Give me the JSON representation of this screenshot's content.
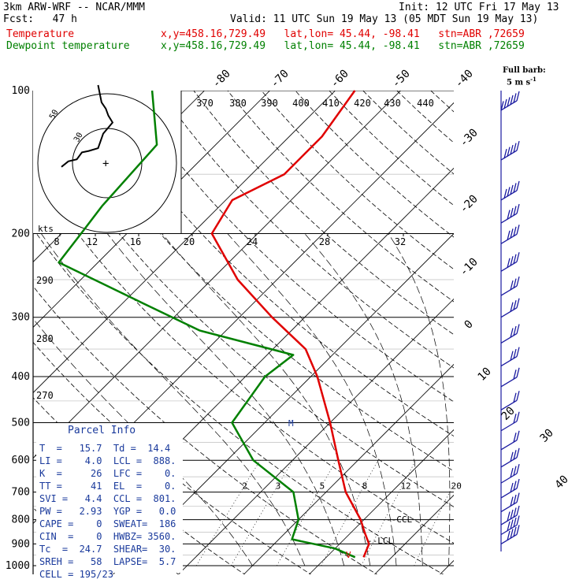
{
  "header": {
    "model": "3km ARW-WRF -- NCAR/MMM",
    "init": "Init: 12 UTC Fri 17 May 13",
    "fcst": "Fcst:   47 h",
    "valid": "Valid: 11 UTC Sun 19 May 13 (05 MDT Sun 19 May 13)",
    "temp_label": "Temperature",
    "temp_info": "x,y=458.16,729.49   lat,lon= 45.44, -98.41   stn=ABR ,72659",
    "dew_label": "Dewpoint temperature",
    "dew_info": "x,y=458.16,729.49   lat,lon= 45.44, -98.41   stn=ABR ,72659",
    "barb_title": "Full barb:",
    "barb_unit": "5 m s",
    "barb_exp": "-1"
  },
  "colors": {
    "temperature": "#e00000",
    "dewpoint": "#008000",
    "hodograph": "#000000",
    "barbs": "#1a1aa0",
    "parcel_text": "#1a3a9c",
    "grid": "#000000"
  },
  "parcel_info": {
    "title": "Parcel Info",
    "rows": [
      "T  =   15.7  Td =  14.4",
      "LI =    4.0  LCL =  888.",
      "K  =     26  LFC =    0.",
      "TT =     41  EL  =    0.",
      "SVI =   4.4  CCL =  801.",
      "PW =   2.93  YGP =   0.0",
      "CAPE =    0  SWEAT=  186",
      "CIN  =    0  HWBZ= 3560.",
      "Tc  =  24.7  SHEAR=  30.",
      "SREH =   58  LAPSE=  5.7",
      "CELL = 195/23"
    ]
  },
  "chart_data": {
    "type": "line",
    "subtype": "skew-T log-P",
    "pressure_levels": [
      "100",
      "200",
      "300",
      "400",
      "500",
      "600",
      "700",
      "800",
      "900",
      "1000"
    ],
    "isotherm_labels": [
      "-80",
      "-70",
      "-60",
      "-50",
      "-40",
      "-30",
      "-20",
      "-10",
      "0",
      "10",
      "20",
      "30",
      "40"
    ],
    "theta_labels": [
      "370",
      "380",
      "390",
      "400",
      "410",
      "420",
      "430",
      "440"
    ],
    "theta_side_labels": [
      "290",
      "280",
      "270"
    ],
    "mixing_ratio_labels": [
      "2",
      "3",
      "5",
      "8",
      "12",
      "20"
    ],
    "hodograph_speed_labels": [
      "8",
      "12",
      "16",
      "20",
      "24",
      "28",
      "32"
    ],
    "hodograph_unit": "kts",
    "hodograph_ring_labels": [
      "30",
      "50"
    ],
    "markers": {
      "lcl": "LCL",
      "ccl": "CCL",
      "freezing": "M",
      "surface": "V"
    },
    "series": [
      {
        "name": "Temperature",
        "points": [
          {
            "p": 100,
            "t": -57
          },
          {
            "p": 125,
            "t": -55
          },
          {
            "p": 150,
            "t": -55
          },
          {
            "p": 170,
            "t": -59
          },
          {
            "p": 200,
            "t": -57
          },
          {
            "p": 250,
            "t": -46
          },
          {
            "p": 300,
            "t": -35
          },
          {
            "p": 350,
            "t": -25
          },
          {
            "p": 400,
            "t": -19
          },
          {
            "p": 500,
            "t": -10
          },
          {
            "p": 600,
            "t": -3
          },
          {
            "p": 700,
            "t": 3
          },
          {
            "p": 800,
            "t": 9.5
          },
          {
            "p": 850,
            "t": 12
          },
          {
            "p": 900,
            "t": 14.5
          },
          {
            "p": 960,
            "t": 15.7
          }
        ]
      },
      {
        "name": "Dewpoint temperature",
        "points": [
          {
            "p": 100,
            "t": -88
          },
          {
            "p": 130,
            "t": -79
          },
          {
            "p": 175,
            "t": -78
          },
          {
            "p": 200,
            "t": -77
          },
          {
            "p": 230,
            "t": -76
          },
          {
            "p": 280,
            "t": -57
          },
          {
            "p": 320,
            "t": -44
          },
          {
            "p": 360,
            "t": -26
          },
          {
            "p": 400,
            "t": -27
          },
          {
            "p": 500,
            "t": -25
          },
          {
            "p": 600,
            "t": -16
          },
          {
            "p": 700,
            "t": -5
          },
          {
            "p": 800,
            "t": 0
          },
          {
            "p": 880,
            "t": 2
          },
          {
            "p": 920,
            "t": 10
          },
          {
            "p": 960,
            "t": 14.4
          }
        ]
      }
    ],
    "hodograph": [
      {
        "u": 0,
        "v": 7
      },
      {
        "u": 8,
        "v": 15
      },
      {
        "u": 18,
        "v": 18
      },
      {
        "u": 24,
        "v": 28
      },
      {
        "u": 32,
        "v": 30
      },
      {
        "u": 43,
        "v": 34
      },
      {
        "u": 49,
        "v": 55
      },
      {
        "u": 60,
        "v": 71
      },
      {
        "u": 55,
        "v": 81
      },
      {
        "u": 52,
        "v": 91
      },
      {
        "u": 47,
        "v": 100
      },
      {
        "u": 43,
        "v": 125
      }
    ],
    "wind_barbs": [
      {
        "p": 110,
        "speed_kts": 60
      },
      {
        "p": 140,
        "speed_kts": 50
      },
      {
        "p": 170,
        "speed_kts": 45
      },
      {
        "p": 190,
        "speed_kts": 40
      },
      {
        "p": 210,
        "speed_kts": 40
      },
      {
        "p": 240,
        "speed_kts": 35
      },
      {
        "p": 270,
        "speed_kts": 30
      },
      {
        "p": 300,
        "speed_kts": 30
      },
      {
        "p": 340,
        "speed_kts": 25
      },
      {
        "p": 380,
        "speed_kts": 25
      },
      {
        "p": 420,
        "speed_kts": 20
      },
      {
        "p": 470,
        "speed_kts": 20
      },
      {
        "p": 520,
        "speed_kts": 15
      },
      {
        "p": 570,
        "speed_kts": 20
      },
      {
        "p": 620,
        "speed_kts": 25
      },
      {
        "p": 670,
        "speed_kts": 25
      },
      {
        "p": 720,
        "speed_kts": 25
      },
      {
        "p": 770,
        "speed_kts": 30
      },
      {
        "p": 820,
        "speed_kts": 35
      },
      {
        "p": 860,
        "speed_kts": 40
      },
      {
        "p": 900,
        "speed_kts": 40
      }
    ]
  }
}
